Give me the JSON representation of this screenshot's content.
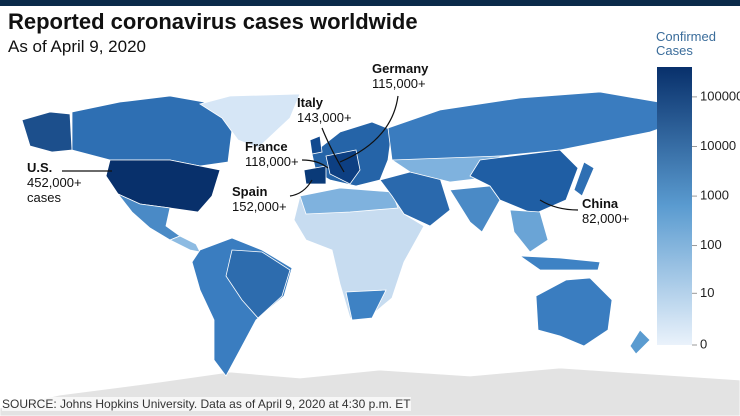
{
  "title": "Reported coronavirus cases worldwide",
  "subtitle": "As of April 9, 2020",
  "legend": {
    "title": "Confirmed Cases",
    "ticks": [
      100000,
      10000,
      1000,
      100,
      10,
      0
    ],
    "range": [
      0,
      400000
    ],
    "scale": "log",
    "colors": [
      "#eaf2fb",
      "#08306b"
    ]
  },
  "annotations": [
    {
      "title": "U.S.",
      "lines": [
        "452,000+",
        "cases"
      ]
    },
    {
      "title": "Spain",
      "lines": [
        "152,000+"
      ]
    },
    {
      "title": "France",
      "lines": [
        "118,000+"
      ]
    },
    {
      "title": "Italy",
      "lines": [
        "143,000+"
      ]
    },
    {
      "title": "Germany",
      "lines": [
        "115,000+"
      ]
    },
    {
      "title": "China",
      "lines": [
        "82,000+"
      ]
    }
  ],
  "source": "SOURCE: Johns Hopkins University. Data as of April 9, 2020 at 4:30 p.m. ET"
}
